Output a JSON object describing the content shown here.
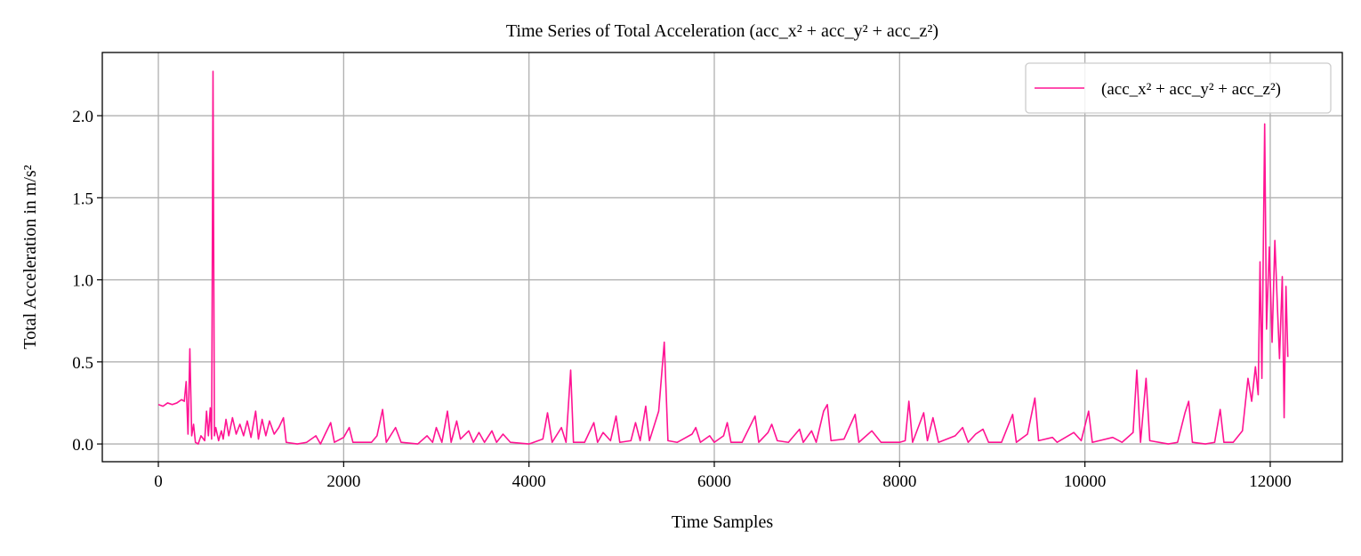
{
  "chart_data": {
    "type": "line",
    "title": "Time Series of Total Acceleration (acc_x² + acc_y² + acc_z²)",
    "x_label": "Time Samples",
    "y_label": "Total Acceleration in m/s²",
    "x": [
      0,
      50,
      100,
      150,
      200,
      250,
      280,
      300,
      320,
      340,
      360,
      380,
      400,
      430,
      460,
      500,
      520,
      540,
      560,
      575,
      590,
      605,
      620,
      650,
      680,
      700,
      730,
      760,
      800,
      840,
      880,
      920,
      960,
      1000,
      1050,
      1080,
      1120,
      1160,
      1200,
      1250,
      1300,
      1350,
      1380,
      1500,
      1600,
      1700,
      1750,
      1800,
      1860,
      1900,
      2000,
      2060,
      2100,
      2300,
      2360,
      2420,
      2460,
      2560,
      2620,
      2800,
      2900,
      2960,
      3000,
      3060,
      3120,
      3160,
      3220,
      3260,
      3350,
      3400,
      3460,
      3520,
      3600,
      3650,
      3720,
      3800,
      4000,
      4150,
      4200,
      4250,
      4350,
      4400,
      4450,
      4480,
      4600,
      4700,
      4740,
      4800,
      4880,
      4940,
      4980,
      5100,
      5150,
      5200,
      5260,
      5300,
      5400,
      5460,
      5500,
      5600,
      5760,
      5800,
      5850,
      5950,
      6000,
      6100,
      6140,
      6180,
      6300,
      6440,
      6480,
      6580,
      6620,
      6680,
      6800,
      6920,
      6960,
      7050,
      7100,
      7180,
      7220,
      7260,
      7400,
      7520,
      7560,
      7700,
      7800,
      8000,
      8060,
      8100,
      8140,
      8260,
      8300,
      8360,
      8420,
      8600,
      8680,
      8740,
      8820,
      8900,
      8960,
      9100,
      9220,
      9260,
      9380,
      9460,
      9500,
      9650,
      9700,
      9880,
      9960,
      10040,
      10080,
      10300,
      10400,
      10520,
      10560,
      10600,
      10660,
      10700,
      10900,
      11000,
      11080,
      11120,
      11160,
      11300,
      11400,
      11460,
      11500,
      11600,
      11700,
      11760,
      11800,
      11840,
      11870,
      11890,
      11910,
      11940,
      11960,
      11990,
      12020,
      12050,
      12080,
      12100,
      12130,
      12150,
      12170,
      12190
    ],
    "series": [
      {
        "name": "(acc_x² + acc_y² + acc_z²)",
        "color": "#ff1493",
        "values": [
          0.24,
          0.23,
          0.25,
          0.24,
          0.25,
          0.27,
          0.26,
          0.38,
          0.06,
          0.58,
          0.05,
          0.12,
          0.01,
          0.0,
          0.05,
          0.02,
          0.2,
          0.05,
          0.22,
          0.03,
          2.27,
          0.05,
          0.1,
          0.02,
          0.08,
          0.03,
          0.15,
          0.05,
          0.16,
          0.06,
          0.12,
          0.05,
          0.14,
          0.04,
          0.2,
          0.03,
          0.15,
          0.05,
          0.14,
          0.06,
          0.1,
          0.16,
          0.01,
          0.0,
          0.01,
          0.05,
          0.0,
          0.06,
          0.13,
          0.01,
          0.04,
          0.1,
          0.01,
          0.01,
          0.05,
          0.21,
          0.01,
          0.1,
          0.01,
          0.0,
          0.05,
          0.01,
          0.1,
          0.01,
          0.2,
          0.01,
          0.14,
          0.03,
          0.08,
          0.01,
          0.07,
          0.01,
          0.08,
          0.01,
          0.06,
          0.01,
          0.0,
          0.03,
          0.19,
          0.01,
          0.1,
          0.01,
          0.45,
          0.01,
          0.01,
          0.13,
          0.01,
          0.07,
          0.02,
          0.17,
          0.01,
          0.02,
          0.13,
          0.02,
          0.23,
          0.02,
          0.2,
          0.62,
          0.02,
          0.01,
          0.06,
          0.1,
          0.01,
          0.05,
          0.01,
          0.05,
          0.13,
          0.01,
          0.01,
          0.17,
          0.01,
          0.07,
          0.12,
          0.02,
          0.01,
          0.09,
          0.01,
          0.08,
          0.01,
          0.2,
          0.24,
          0.02,
          0.03,
          0.18,
          0.01,
          0.08,
          0.01,
          0.01,
          0.02,
          0.26,
          0.01,
          0.19,
          0.02,
          0.16,
          0.01,
          0.05,
          0.1,
          0.01,
          0.06,
          0.09,
          0.01,
          0.01,
          0.18,
          0.01,
          0.06,
          0.28,
          0.02,
          0.04,
          0.01,
          0.07,
          0.02,
          0.2,
          0.01,
          0.04,
          0.01,
          0.07,
          0.45,
          0.01,
          0.4,
          0.02,
          0.0,
          0.01,
          0.19,
          0.26,
          0.01,
          0.0,
          0.01,
          0.21,
          0.01,
          0.01,
          0.08,
          0.4,
          0.26,
          0.47,
          0.3,
          1.11,
          0.4,
          1.95,
          0.7,
          1.2,
          0.62,
          1.24,
          0.8,
          0.52,
          1.02,
          0.16,
          0.96,
          0.53
        ]
      }
    ],
    "xlim": [
      -605,
      12778
    ],
    "ylim": [
      -0.108,
      2.385
    ],
    "xticks": [
      0,
      2000,
      4000,
      6000,
      8000,
      10000,
      12000
    ],
    "yticks": [
      {
        "value": 0,
        "label": "0.0"
      },
      0.5,
      {
        "value": 1,
        "label": "1.0"
      },
      1.5,
      {
        "value": 2,
        "label": "2.0"
      }
    ],
    "grid": true,
    "legend": "upper right"
  }
}
